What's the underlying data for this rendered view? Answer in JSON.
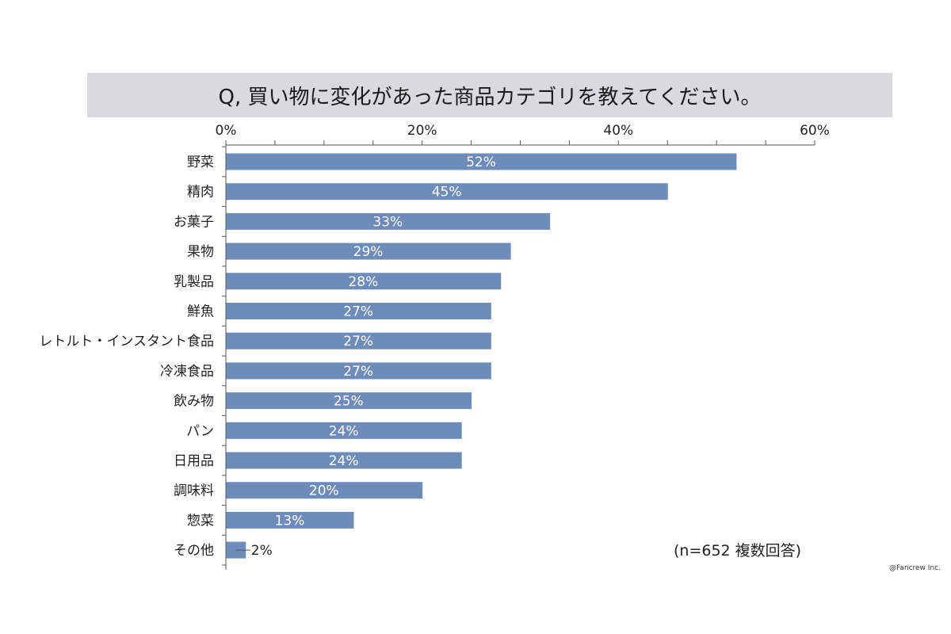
{
  "title": "Q, 買い物に変化があった商品カテゴリを教えてください。",
  "note": "(n=652 複数回答)",
  "credit": "@Fancrew Inc.",
  "chart_data": {
    "type": "bar",
    "orientation": "horizontal",
    "categories": [
      "野菜",
      "精肉",
      "お菓子",
      "果物",
      "乳製品",
      "鮮魚",
      "レトルト・インスタント食品",
      "冷凍食品",
      "飲み物",
      "パン",
      "日用品",
      "調味料",
      "惣菜",
      "その他"
    ],
    "values": [
      52,
      45,
      33,
      29,
      28,
      27,
      27,
      27,
      25,
      24,
      24,
      20,
      13,
      2
    ],
    "value_labels": [
      "52%",
      "45%",
      "33%",
      "29%",
      "28%",
      "27%",
      "27%",
      "27%",
      "25%",
      "24%",
      "24%",
      "20%",
      "13%",
      "2%"
    ],
    "xlim": [
      0,
      60
    ],
    "ticks": [
      0,
      20,
      40,
      60
    ],
    "tick_labels": [
      "0%",
      "20%",
      "40%",
      "60%"
    ],
    "bar_color": "#6e8cb9",
    "grid": false
  }
}
